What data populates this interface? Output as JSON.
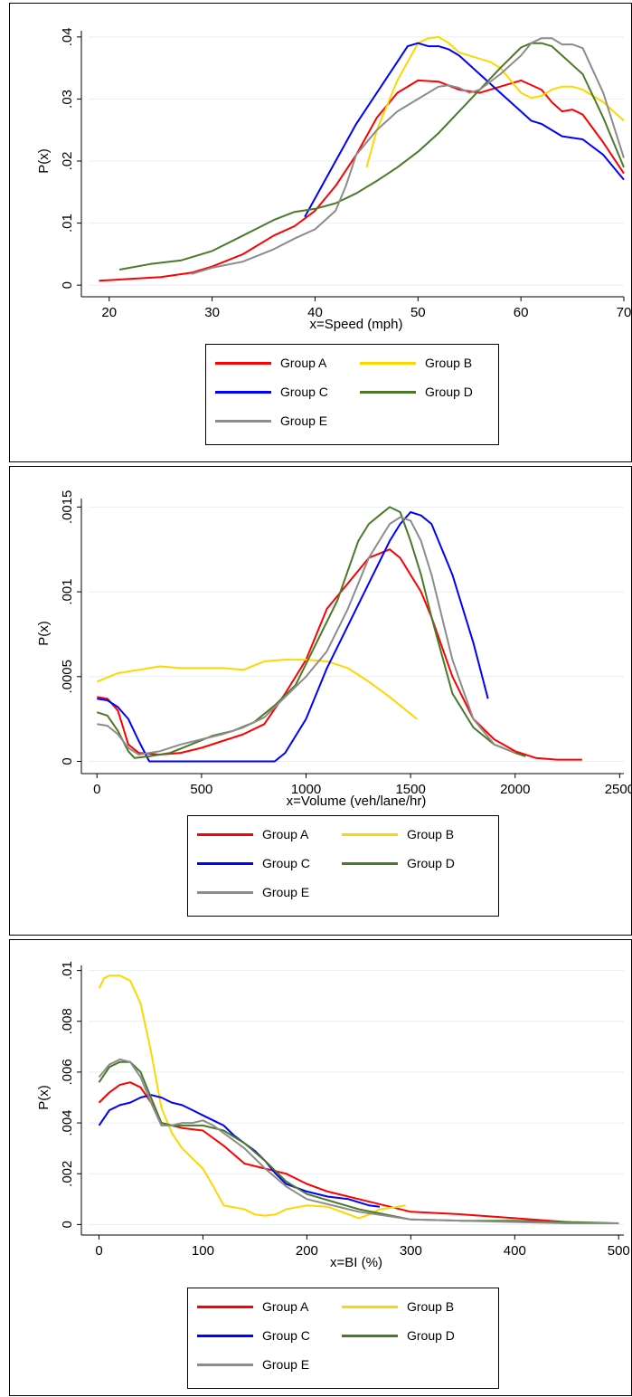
{
  "chart_data": [
    {
      "type": "line",
      "xlabel": "x=Speed (mph)",
      "ylabel": "P(x)",
      "xlim": [
        18,
        70
      ],
      "ylim": [
        -0.001,
        0.041
      ],
      "xticks": [
        20,
        30,
        40,
        50,
        60,
        70
      ],
      "xtick_labels": [
        "20",
        "30",
        "40",
        "50",
        "60",
        "70"
      ],
      "yticks": [
        0,
        0.01,
        0.02,
        0.03,
        0.04
      ],
      "ytick_labels": [
        "0",
        ".01",
        ".02",
        ".03",
        ".04"
      ],
      "legend": "bottom",
      "grid": true,
      "series": [
        {
          "name": "Group A",
          "color": "#ff0000",
          "x": [
            19,
            22,
            25,
            28,
            30,
            33,
            36,
            38,
            40,
            42,
            44,
            46,
            48,
            50,
            52,
            54,
            56,
            58,
            60,
            62,
            63,
            64,
            65,
            66,
            68,
            70
          ],
          "y": [
            0.0007,
            0.001,
            0.0013,
            0.002,
            0.003,
            0.005,
            0.008,
            0.0095,
            0.012,
            0.016,
            0.021,
            0.027,
            0.031,
            0.033,
            0.0328,
            0.0315,
            0.031,
            0.032,
            0.033,
            0.0315,
            0.0295,
            0.028,
            0.0283,
            0.0275,
            0.023,
            0.018
          ]
        },
        {
          "name": "Group B",
          "color": "#ffd700",
          "x": [
            45,
            46,
            47,
            48,
            49,
            50,
            51,
            52,
            53,
            54,
            55,
            56,
            57,
            58,
            59,
            60,
            61,
            62,
            63,
            64,
            65,
            66,
            68,
            70
          ],
          "y": [
            0.019,
            0.025,
            0.029,
            0.033,
            0.036,
            0.039,
            0.0398,
            0.04,
            0.039,
            0.0375,
            0.037,
            0.0365,
            0.036,
            0.035,
            0.033,
            0.031,
            0.0302,
            0.0305,
            0.0315,
            0.032,
            0.032,
            0.0315,
            0.0295,
            0.0265
          ]
        },
        {
          "name": "Group C",
          "color": "#0000ff",
          "x": [
            39,
            40,
            42,
            44,
            46,
            48,
            49,
            50,
            51,
            52,
            53,
            54,
            56,
            58,
            60,
            61,
            62,
            64,
            66,
            68,
            70
          ],
          "y": [
            0.011,
            0.014,
            0.02,
            0.026,
            0.031,
            0.036,
            0.0385,
            0.039,
            0.0385,
            0.0385,
            0.038,
            0.037,
            0.034,
            0.031,
            0.028,
            0.0265,
            0.026,
            0.024,
            0.0235,
            0.021,
            0.017
          ]
        },
        {
          "name": "Group D",
          "color": "#4a7a28",
          "x": [
            21,
            24,
            27,
            30,
            33,
            36,
            38,
            40,
            42,
            44,
            46,
            48,
            50,
            52,
            54,
            56,
            58,
            60,
            61,
            62,
            63,
            64,
            66,
            68,
            70
          ],
          "y": [
            0.0025,
            0.0034,
            0.004,
            0.0055,
            0.008,
            0.0105,
            0.0118,
            0.0123,
            0.0132,
            0.0148,
            0.0168,
            0.019,
            0.0215,
            0.0245,
            0.028,
            0.0315,
            0.035,
            0.0383,
            0.039,
            0.039,
            0.0385,
            0.037,
            0.034,
            0.027,
            0.019
          ]
        },
        {
          "name": "Group E",
          "color": "#8c8c8c",
          "x": [
            28,
            30,
            33,
            36,
            38,
            40,
            42,
            43,
            44,
            46,
            48,
            50,
            52,
            53,
            54,
            55,
            56,
            58,
            60,
            61,
            62,
            63,
            64,
            65,
            66,
            68,
            70
          ],
          "y": [
            0.0018,
            0.0028,
            0.0038,
            0.0058,
            0.0075,
            0.009,
            0.012,
            0.016,
            0.021,
            0.025,
            0.028,
            0.03,
            0.032,
            0.0322,
            0.0318,
            0.031,
            0.0315,
            0.034,
            0.037,
            0.039,
            0.0398,
            0.0398,
            0.0388,
            0.0388,
            0.0382,
            0.031,
            0.0205
          ]
        }
      ]
    },
    {
      "type": "line",
      "xlabel": "x=Volume (veh/lane/hr)",
      "ylabel": "P(x)",
      "xlim": [
        -40,
        2520
      ],
      "ylim": [
        -4e-05,
        0.00155
      ],
      "xticks": [
        0,
        500,
        1000,
        1500,
        2000,
        2500
      ],
      "xtick_labels": [
        "0",
        "500",
        "1000",
        "1500",
        "2000",
        "2500"
      ],
      "yticks": [
        0,
        0.0005,
        0.001,
        0.0015
      ],
      "ytick_labels": [
        "0",
        ".0005",
        ".001",
        ".0015"
      ],
      "legend": "bottom",
      "grid": true,
      "series": [
        {
          "name": "Group A",
          "color": "#ff0000",
          "x": [
            0,
            50,
            100,
            150,
            200,
            300,
            400,
            500,
            600,
            700,
            800,
            900,
            1000,
            1100,
            1200,
            1300,
            1400,
            1450,
            1500,
            1550,
            1600,
            1700,
            1800,
            1900,
            2000,
            2100,
            2200,
            2320
          ],
          "y": [
            0.00038,
            0.00037,
            0.0003,
            0.0001,
            5e-05,
            4e-05,
            5e-05,
            8e-05,
            0.00012,
            0.00016,
            0.00022,
            0.0004,
            0.0006,
            0.0009,
            0.00105,
            0.0012,
            0.00125,
            0.0012,
            0.0011,
            0.001,
            0.00085,
            0.0005,
            0.00025,
            0.00013,
            6e-05,
            2e-05,
            1e-05,
            1e-05
          ]
        },
        {
          "name": "Group B",
          "color": "#ffd700",
          "x": [
            0,
            100,
            200,
            300,
            400,
            500,
            600,
            700,
            800,
            900,
            1000,
            1100,
            1200,
            1300,
            1400,
            1500,
            1530
          ],
          "y": [
            0.00047,
            0.00052,
            0.00054,
            0.00056,
            0.00055,
            0.00055,
            0.00055,
            0.00054,
            0.00059,
            0.0006,
            0.0006,
            0.00059,
            0.00055,
            0.00047,
            0.00038,
            0.00028,
            0.00025
          ]
        },
        {
          "name": "Group C",
          "color": "#0000ff",
          "x": [
            0,
            50,
            100,
            150,
            200,
            250,
            300,
            400,
            500,
            600,
            700,
            800,
            850,
            900,
            1000,
            1100,
            1200,
            1300,
            1400,
            1450,
            1500,
            1550,
            1600,
            1700,
            1800,
            1870
          ],
          "y": [
            0.00037,
            0.00036,
            0.00032,
            0.00025,
            0.00012,
            0.0,
            0.0,
            0.0,
            0.0,
            0.0,
            0.0,
            0.0,
            0.0,
            5e-05,
            0.00025,
            0.00055,
            0.0008,
            0.00105,
            0.0013,
            0.0014,
            0.00147,
            0.00145,
            0.0014,
            0.0011,
            0.0007,
            0.00037
          ]
        },
        {
          "name": "Group D",
          "color": "#4a7a28",
          "x": [
            0,
            50,
            100,
            150,
            180,
            250,
            350,
            450,
            550,
            650,
            750,
            850,
            950,
            1050,
            1150,
            1250,
            1300,
            1350,
            1400,
            1450,
            1500,
            1550,
            1600,
            1700,
            1800,
            1900,
            2000,
            2050
          ],
          "y": [
            0.00029,
            0.00027,
            0.00018,
            6e-05,
            2e-05,
            3e-05,
            5e-05,
            0.0001,
            0.00015,
            0.00018,
            0.00023,
            0.00033,
            0.00045,
            0.0007,
            0.00095,
            0.0013,
            0.0014,
            0.00145,
            0.0015,
            0.00147,
            0.0013,
            0.0011,
            0.00085,
            0.0004,
            0.0002,
            0.0001,
            5e-05,
            3e-05
          ]
        },
        {
          "name": "Group E",
          "color": "#8c8c8c",
          "x": [
            0,
            50,
            100,
            150,
            200,
            300,
            400,
            500,
            600,
            700,
            800,
            900,
            1000,
            1100,
            1200,
            1300,
            1350,
            1400,
            1450,
            1500,
            1550,
            1600,
            1700,
            1800,
            1900,
            2000
          ],
          "y": [
            0.00022,
            0.00021,
            0.00016,
            8e-05,
            4e-05,
            6e-05,
            0.0001,
            0.00013,
            0.00016,
            0.0002,
            0.00026,
            0.00038,
            0.0005,
            0.00065,
            0.0009,
            0.0012,
            0.0013,
            0.0014,
            0.00144,
            0.00142,
            0.0013,
            0.0011,
            0.0006,
            0.00025,
            0.0001,
            5e-05
          ]
        }
      ]
    },
    {
      "type": "line",
      "xlabel": "x=BI (%)",
      "ylabel": "P(x)",
      "xlim": [
        -10,
        505
      ],
      "ylim": [
        -0.0002,
        0.0102
      ],
      "xticks": [
        0,
        100,
        200,
        300,
        400,
        500
      ],
      "xtick_labels": [
        "0",
        "100",
        "200",
        "300",
        "400",
        "500"
      ],
      "yticks": [
        0,
        0.002,
        0.004,
        0.006,
        0.008,
        0.01
      ],
      "ytick_labels": [
        "0",
        ".002",
        ".004",
        ".006",
        ".008",
        ".01"
      ],
      "legend": "bottom",
      "grid": true,
      "series": [
        {
          "name": "Group A",
          "color": "#ff0000",
          "x": [
            0,
            10,
            20,
            30,
            40,
            50,
            60,
            70,
            80,
            100,
            120,
            140,
            160,
            180,
            200,
            220,
            250,
            280,
            300,
            350,
            400,
            450,
            465
          ],
          "y": [
            0.0048,
            0.0052,
            0.0055,
            0.0056,
            0.0054,
            0.0048,
            0.004,
            0.0039,
            0.0038,
            0.0037,
            0.0031,
            0.0024,
            0.0022,
            0.002,
            0.0016,
            0.0013,
            0.001,
            0.0007,
            0.0005,
            0.0004,
            0.00025,
            0.0001,
            5e-05
          ]
        },
        {
          "name": "Group B",
          "color": "#ffd700",
          "x": [
            0,
            5,
            10,
            20,
            30,
            40,
            50,
            60,
            70,
            80,
            100,
            110,
            120,
            140,
            150,
            160,
            170,
            180,
            200,
            220,
            240,
            250,
            260,
            270,
            280,
            295
          ],
          "y": [
            0.0093,
            0.0097,
            0.0098,
            0.0098,
            0.0096,
            0.0087,
            0.0068,
            0.0046,
            0.0036,
            0.003,
            0.0022,
            0.0015,
            0.00075,
            0.0006,
            0.0004,
            0.00035,
            0.0004,
            0.0006,
            0.00075,
            0.0007,
            0.0004,
            0.00025,
            0.0004,
            0.0006,
            0.00065,
            0.00075
          ]
        },
        {
          "name": "Group C",
          "color": "#0000ff",
          "x": [
            0,
            10,
            20,
            30,
            40,
            50,
            60,
            70,
            80,
            90,
            100,
            110,
            120,
            130,
            140,
            150,
            160,
            170,
            180,
            200,
            220,
            240,
            260,
            270
          ],
          "y": [
            0.0039,
            0.0045,
            0.0047,
            0.0048,
            0.005,
            0.0051,
            0.005,
            0.0048,
            0.0047,
            0.0045,
            0.0043,
            0.0041,
            0.0039,
            0.0035,
            0.0032,
            0.0029,
            0.0025,
            0.002,
            0.0016,
            0.0013,
            0.0011,
            0.001,
            0.00075,
            0.0007
          ]
        },
        {
          "name": "Group D",
          "color": "#4a7a28",
          "x": [
            0,
            10,
            20,
            30,
            40,
            50,
            60,
            70,
            80,
            100,
            120,
            140,
            160,
            180,
            200,
            250,
            300,
            350,
            400,
            450,
            500
          ],
          "y": [
            0.0056,
            0.0062,
            0.0064,
            0.0064,
            0.006,
            0.005,
            0.004,
            0.0039,
            0.0039,
            0.0039,
            0.0037,
            0.0032,
            0.0025,
            0.0017,
            0.0012,
            0.0006,
            0.0002,
            0.00015,
            0.00015,
            0.0001,
            5e-05
          ]
        },
        {
          "name": "Group E",
          "color": "#8c8c8c",
          "x": [
            0,
            10,
            20,
            30,
            40,
            50,
            60,
            70,
            80,
            90,
            100,
            110,
            120,
            140,
            160,
            180,
            200,
            250,
            300,
            350,
            400,
            450,
            500
          ],
          "y": [
            0.0058,
            0.0063,
            0.0065,
            0.0064,
            0.0058,
            0.0048,
            0.0039,
            0.0039,
            0.004,
            0.004,
            0.0041,
            0.0039,
            0.0036,
            0.003,
            0.0022,
            0.0015,
            0.001,
            0.0005,
            0.0002,
            0.00015,
            0.0001,
            5e-05,
            5e-05
          ]
        }
      ]
    }
  ]
}
